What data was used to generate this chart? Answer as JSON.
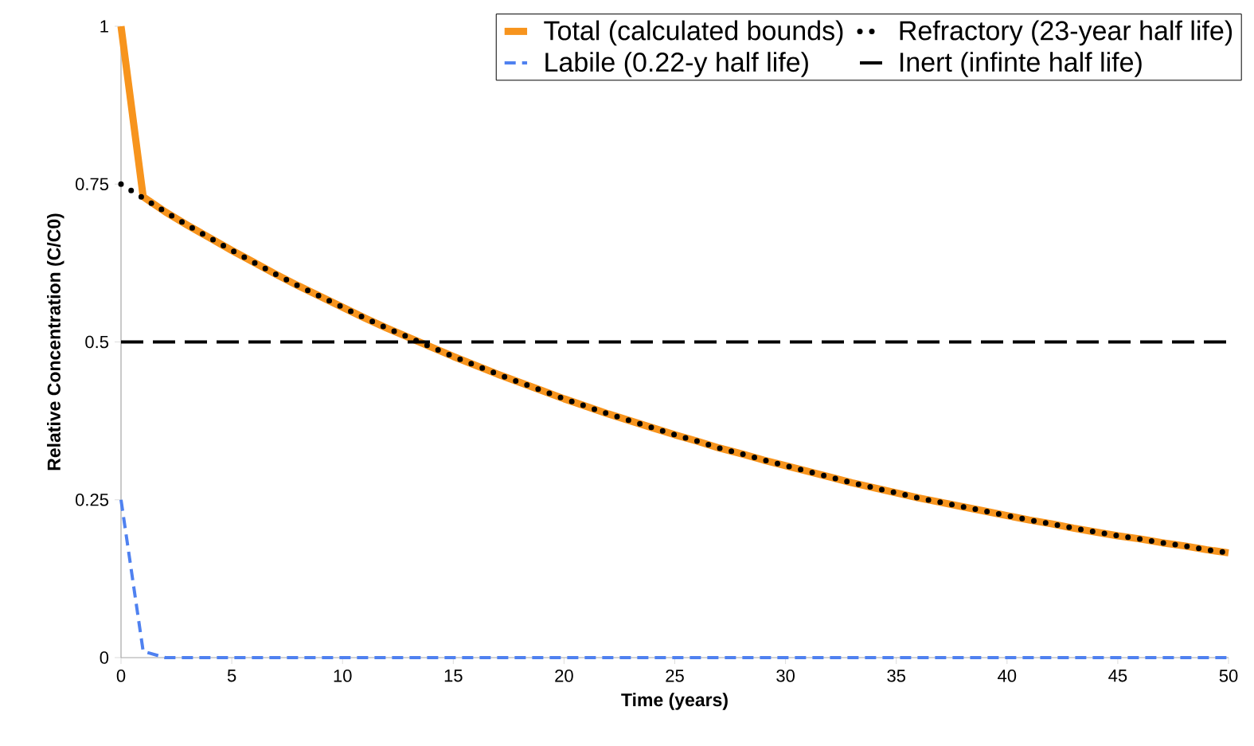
{
  "chart_data": {
    "type": "line",
    "xlabel": "Time (years)",
    "ylabel": "Relative Concentration (C/C0)",
    "xlim": [
      0,
      50
    ],
    "xticks": [
      0,
      5,
      10,
      15,
      20,
      25,
      30,
      35,
      40,
      45,
      50
    ],
    "ylim": [
      0,
      1
    ],
    "yticks": [
      0,
      0.25,
      0.5,
      0.75,
      1
    ],
    "grid": false,
    "legend": "top right",
    "x": [
      0,
      1,
      2,
      3,
      4,
      5,
      6,
      7,
      8,
      9,
      10,
      11,
      12,
      13,
      14,
      15,
      16,
      17,
      18,
      19,
      20,
      21,
      22,
      23,
      24,
      25,
      26,
      27,
      28,
      29,
      30,
      31,
      32,
      33,
      34,
      35,
      36,
      37,
      38,
      39,
      40,
      41,
      42,
      43,
      44,
      45,
      46,
      47,
      48,
      49,
      50
    ],
    "series": [
      {
        "name": "Total (calculated bounds)",
        "color": "#f7941d",
        "line_style": "solid",
        "values": [
          1.0,
          0.73,
          0.706,
          0.685,
          0.665,
          0.645,
          0.626,
          0.607,
          0.589,
          0.572,
          0.555,
          0.538,
          0.522,
          0.507,
          0.492,
          0.477,
          0.463,
          0.449,
          0.436,
          0.423,
          0.41,
          0.398,
          0.386,
          0.375,
          0.364,
          0.353,
          0.343,
          0.332,
          0.323,
          0.313,
          0.304,
          0.295,
          0.286,
          0.277,
          0.269,
          0.261,
          0.253,
          0.246,
          0.239,
          0.232,
          0.225,
          0.218,
          0.212,
          0.205,
          0.199,
          0.193,
          0.188,
          0.182,
          0.177,
          0.171,
          0.166
        ]
      },
      {
        "name": "Refractory (23-year half life)",
        "color": "#000000",
        "line_style": "dotted",
        "values": [
          0.75,
          0.728,
          0.706,
          0.685,
          0.665,
          0.645,
          0.626,
          0.607,
          0.589,
          0.572,
          0.555,
          0.538,
          0.522,
          0.507,
          0.492,
          0.477,
          0.463,
          0.449,
          0.436,
          0.423,
          0.41,
          0.398,
          0.386,
          0.375,
          0.364,
          0.353,
          0.343,
          0.332,
          0.323,
          0.313,
          0.304,
          0.295,
          0.286,
          0.277,
          0.269,
          0.261,
          0.253,
          0.246,
          0.239,
          0.232,
          0.225,
          0.218,
          0.212,
          0.205,
          0.199,
          0.193,
          0.188,
          0.182,
          0.177,
          0.171,
          0.166
        ]
      },
      {
        "name": "Labile (0.22-y half life)",
        "color": "#4f81f0",
        "line_style": "dashed",
        "values": [
          0.25,
          0.01,
          0,
          0,
          0,
          0,
          0,
          0,
          0,
          0,
          0,
          0,
          0,
          0,
          0,
          0,
          0,
          0,
          0,
          0,
          0,
          0,
          0,
          0,
          0,
          0,
          0,
          0,
          0,
          0,
          0,
          0,
          0,
          0,
          0,
          0,
          0,
          0,
          0,
          0,
          0,
          0,
          0,
          0,
          0,
          0,
          0,
          0,
          0,
          0,
          0
        ]
      },
      {
        "name": "Inert (infinte half life)",
        "color": "#000000",
        "line_style": "dashed",
        "values": [
          0.5,
          0.5,
          0.5,
          0.5,
          0.5,
          0.5,
          0.5,
          0.5,
          0.5,
          0.5,
          0.5,
          0.5,
          0.5,
          0.5,
          0.5,
          0.5,
          0.5,
          0.5,
          0.5,
          0.5,
          0.5,
          0.5,
          0.5,
          0.5,
          0.5,
          0.5,
          0.5,
          0.5,
          0.5,
          0.5,
          0.5,
          0.5,
          0.5,
          0.5,
          0.5,
          0.5,
          0.5,
          0.5,
          0.5,
          0.5,
          0.5,
          0.5,
          0.5,
          0.5,
          0.5,
          0.5,
          0.5,
          0.5,
          0.5,
          0.5,
          0.5
        ]
      }
    ]
  }
}
